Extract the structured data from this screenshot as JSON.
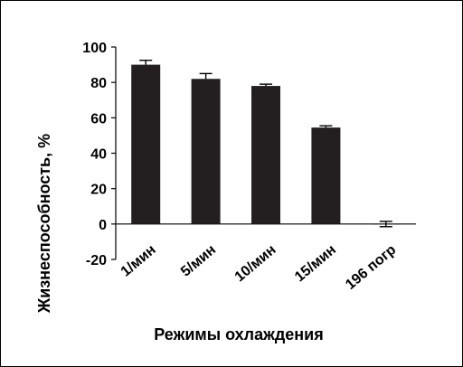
{
  "chart_data": {
    "type": "bar",
    "xlabel": "Режимы охлаждения",
    "ylabel": "Жизнеспособность, %",
    "categories": [
      "1/мин",
      "5/мин",
      "10/мин",
      "15/мин",
      "196 погр"
    ],
    "values": [
      90,
      82,
      78,
      54.5,
      0
    ],
    "errors": [
      2.5,
      3,
      1,
      1,
      1.5
    ],
    "ylim": [
      -20,
      100
    ],
    "yticks": [
      100,
      80,
      60,
      40,
      20,
      0,
      -20
    ],
    "ytick_labels": [
      "100",
      "80",
      "60",
      "40",
      "20",
      "0",
      "-20"
    ],
    "grid": false,
    "colors": {
      "bar": "#231f20",
      "axis": "#000000"
    }
  }
}
